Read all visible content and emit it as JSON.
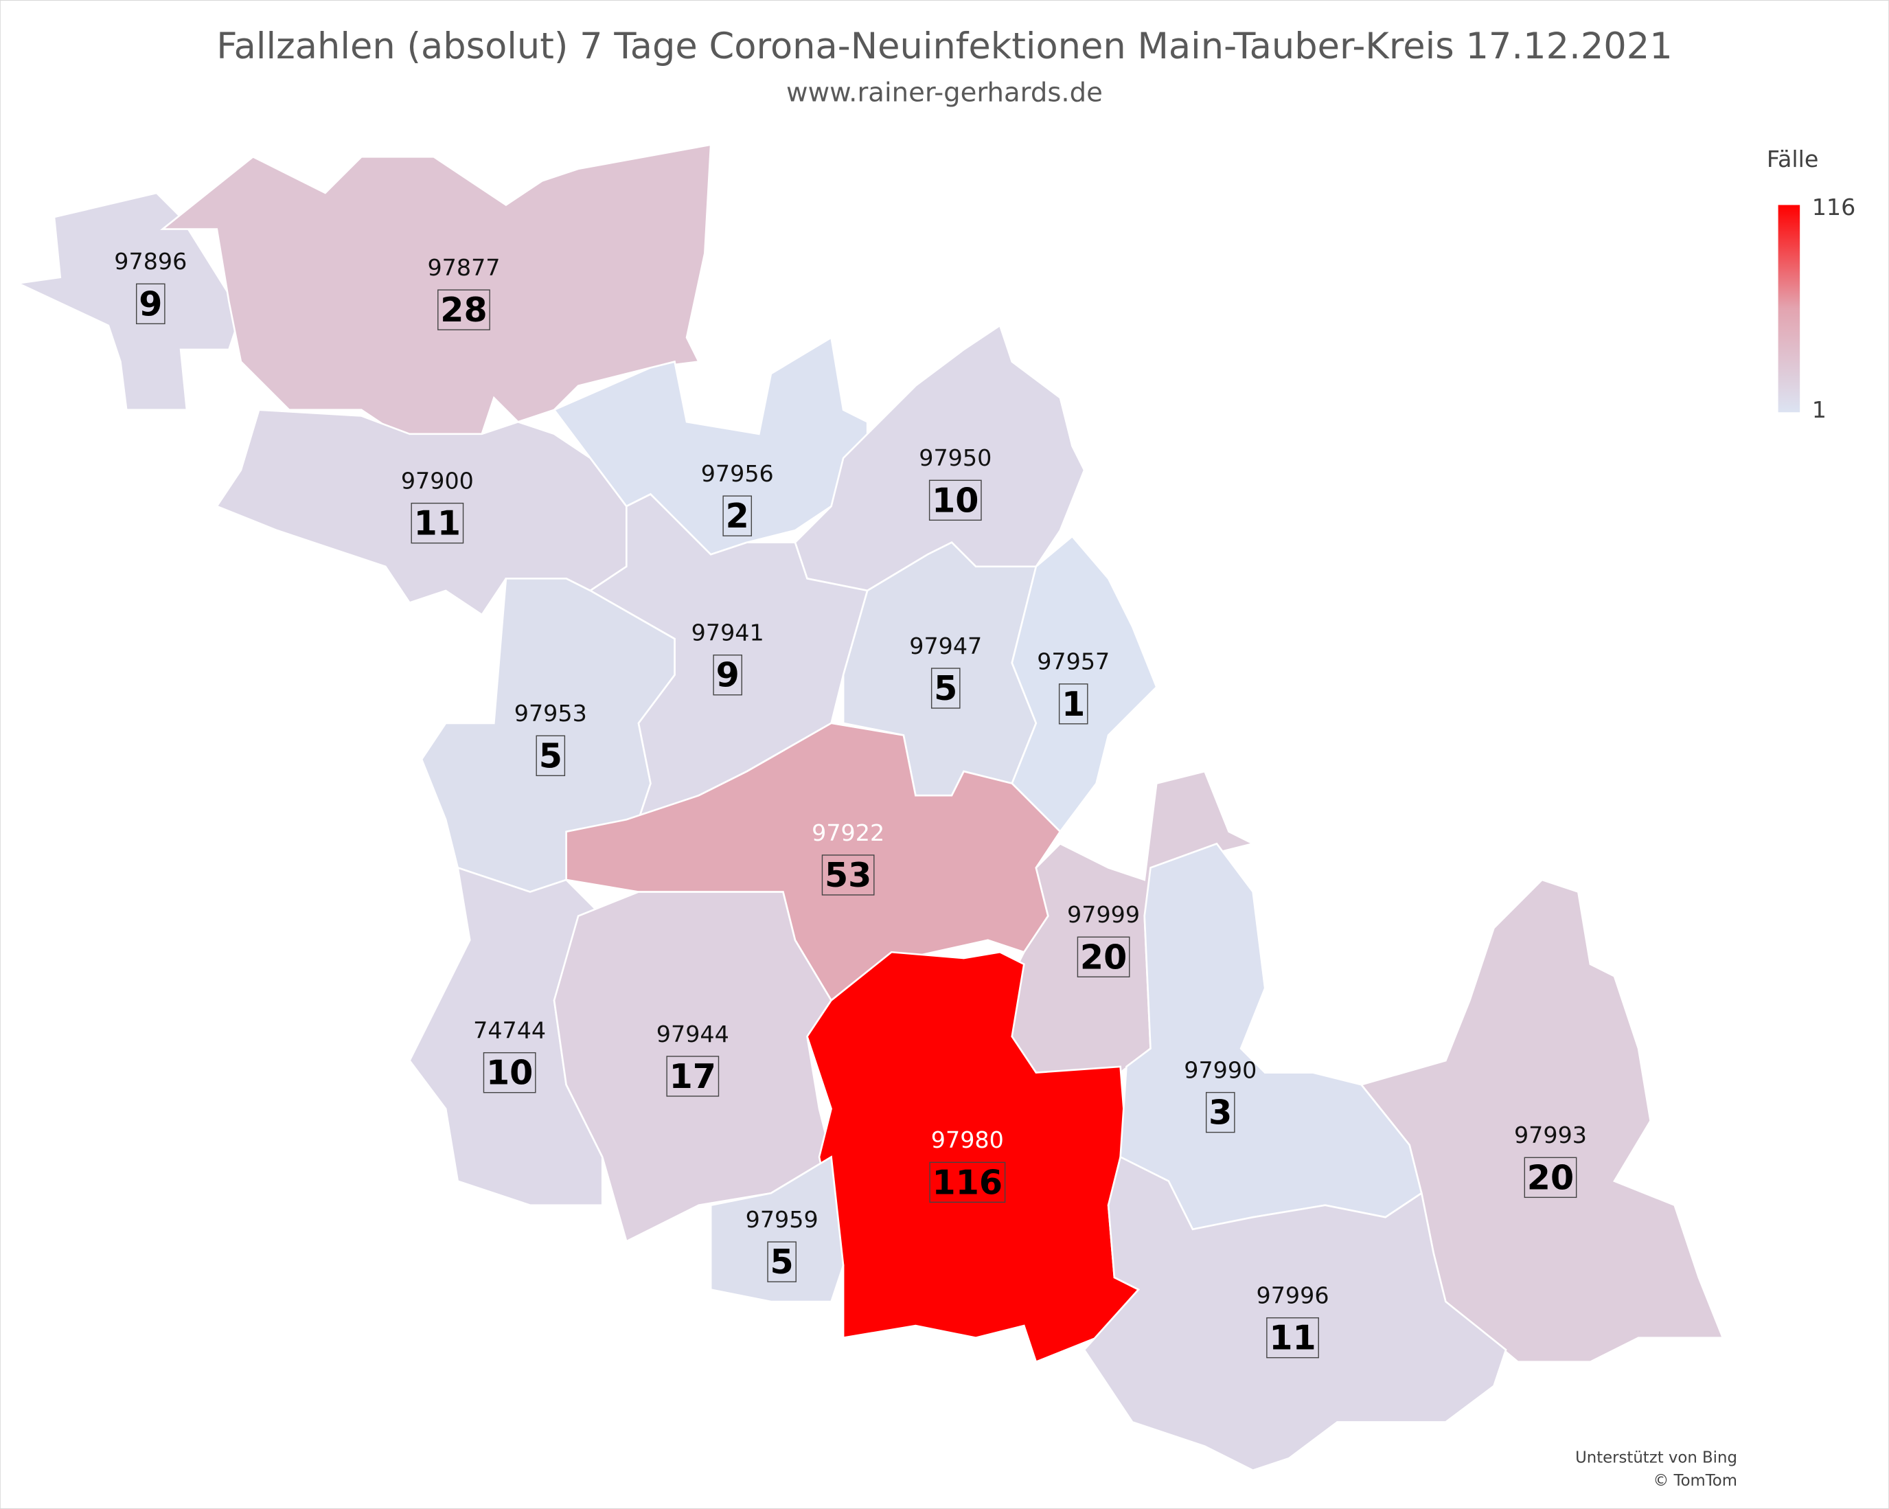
{
  "chart_data": {
    "type": "choropleth",
    "title": "Fallzahlen (absolut) 7 Tage Corona-Neuinfektionen Main-Tauber-Kreis 17.12.2021",
    "subtitle": "www.rainer-gerhards.de",
    "legend_title": "Fälle",
    "color_scale": {
      "min": 1,
      "max": 116,
      "colors": [
        "#dce3f2",
        "#e3a4b0",
        "#ff0000"
      ]
    },
    "regions": [
      {
        "name": "97896",
        "value": 9
      },
      {
        "name": "97877",
        "value": 28
      },
      {
        "name": "97900",
        "value": 11
      },
      {
        "name": "97956",
        "value": 2
      },
      {
        "name": "97950",
        "value": 10
      },
      {
        "name": "97941",
        "value": 9
      },
      {
        "name": "97947",
        "value": 5
      },
      {
        "name": "97957",
        "value": 1
      },
      {
        "name": "97953",
        "value": 5
      },
      {
        "name": "97922",
        "value": 53
      },
      {
        "name": "97999",
        "value": 20
      },
      {
        "name": "74744",
        "value": 10
      },
      {
        "name": "97944",
        "value": 17
      },
      {
        "name": "97980",
        "value": 116
      },
      {
        "name": "97959",
        "value": 5
      },
      {
        "name": "97990",
        "value": 3
      },
      {
        "name": "97993",
        "value": 20
      },
      {
        "name": "97996",
        "value": 11
      }
    ],
    "attribution": [
      "Unterstützt von Bing",
      "© TomTom"
    ]
  }
}
